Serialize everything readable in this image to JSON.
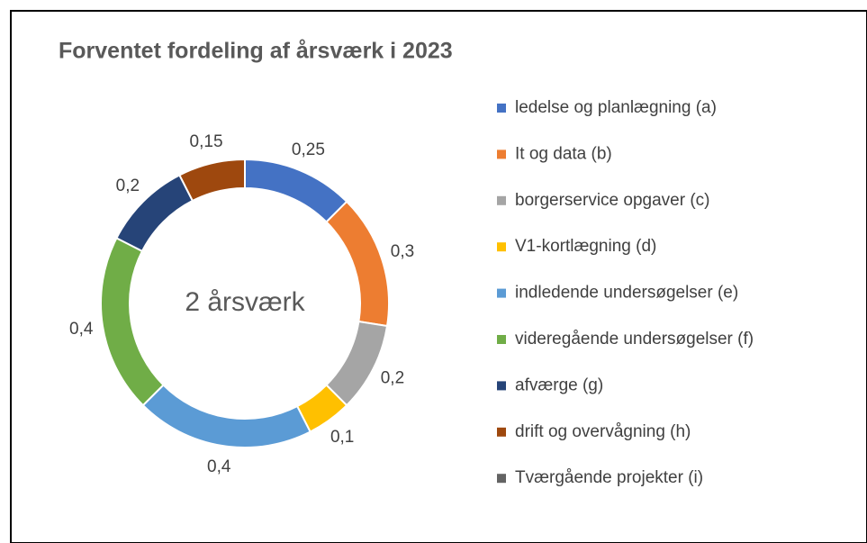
{
  "chart_data": {
    "type": "donut",
    "title": "Forventet fordeling af årsværk i 2023",
    "center_label": "2 årsværk",
    "categories": [
      "ledelse og planlægning (a)",
      "It og data (b)",
      "borgerservice opgaver (c)",
      "V1-kortlægning (d)",
      "indledende undersøgelser (e)",
      "videregående undersøgelser (f)",
      "afværge (g)",
      "drift og overvågning (h)",
      "Tværgående projekter (i)"
    ],
    "values": [
      0.25,
      0.3,
      0.2,
      0.1,
      0.4,
      0.4,
      0.2,
      0.15,
      0
    ],
    "value_labels": [
      "0,25",
      "0,3",
      "0,2",
      "0,1",
      "0,4",
      "0,4",
      "0,2",
      "0,15",
      null
    ],
    "colors": [
      "#4472c4",
      "#ed7d31",
      "#a5a5a5",
      "#ffc000",
      "#5b9bd5",
      "#70ad47",
      "#264478",
      "#9e480e",
      "#636363"
    ],
    "legend": "right"
  }
}
